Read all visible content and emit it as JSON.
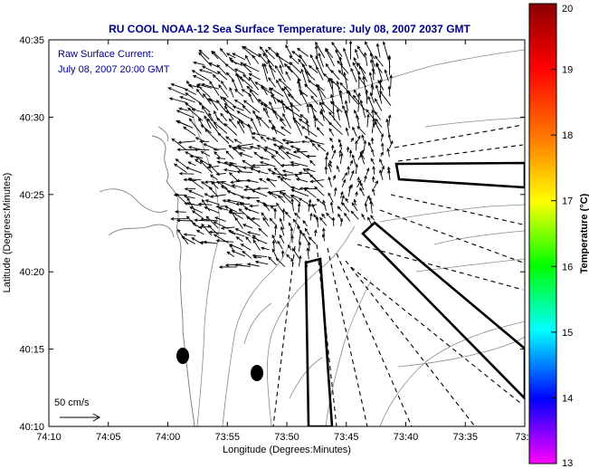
{
  "title": "RU COOL  NOAA-12  Sea Surface Temperature:  July 08, 2007 2037 GMT",
  "inset_text": {
    "line1": "Raw Surface Current:",
    "line2": "July 08, 2007 20:00 GMT"
  },
  "axes": {
    "xlabel": "Longitude (Degrees:Minutes)",
    "ylabel": "Latitude (Degrees:Minutes)",
    "x_ticks": [
      "74:10",
      "74:05",
      "74:00",
      "73:55",
      "73:50",
      "73:45",
      "73:40",
      "73:35",
      "73:3"
    ],
    "y_ticks": [
      "40:35",
      "40:30",
      "40:25",
      "40:20",
      "40:15",
      "40:10"
    ]
  },
  "scale_bar": {
    "label": "50 cm/s"
  },
  "colorbar": {
    "label": "Temperature (°C)",
    "ticks": [
      "20",
      "19",
      "18",
      "17",
      "16",
      "15",
      "14",
      "13"
    ],
    "colors": [
      "#8b0000",
      "#ff0000",
      "#ff8000",
      "#ffff00",
      "#00ff00",
      "#00ffff",
      "#0000ff",
      "#ff00ff"
    ]
  },
  "colors": {
    "title": "#00008b",
    "vectors": "#000000",
    "contours": "#7f7f7f"
  }
}
